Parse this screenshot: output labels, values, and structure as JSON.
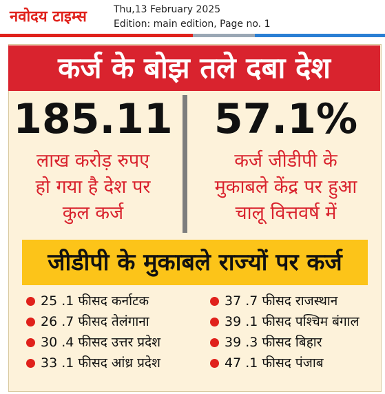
{
  "header": {
    "logo": "नवोदय टाइम्स",
    "date": "Thu,13 February 2025",
    "edition": "Edition: main edition, Page no. 1"
  },
  "title": "कर्ज के बोझ तले दबा देश",
  "stats": [
    {
      "value": "185.11",
      "caption": [
        "लाख करोड़ रुपए",
        "हो गया है देश पर",
        "कुल कर्ज"
      ]
    },
    {
      "value": "57.1%",
      "caption": [
        "कर्ज जीडीपी के",
        "मुकाबले केंद्र पर हुआ",
        "चालू वित्तवर्ष में"
      ]
    }
  ],
  "subtitle": "जीडीपी के मुकाबले राज्यों पर कर्ज",
  "items": [
    [
      "25 .1 फीसद कर्नाटक",
      "26 .7 फीसद तेलंगाना",
      "30 .4 फीसद उत्तर प्रदेश",
      "33 .1 फीसद आंध्र प्रदेश"
    ],
    [
      "37 .7 फीसद राजस्थान",
      "39 .1 फीसद पश्चिम बंगाल",
      "39 .3 फीसद बिहार",
      "47 .1 फीसद पंजाब"
    ]
  ]
}
